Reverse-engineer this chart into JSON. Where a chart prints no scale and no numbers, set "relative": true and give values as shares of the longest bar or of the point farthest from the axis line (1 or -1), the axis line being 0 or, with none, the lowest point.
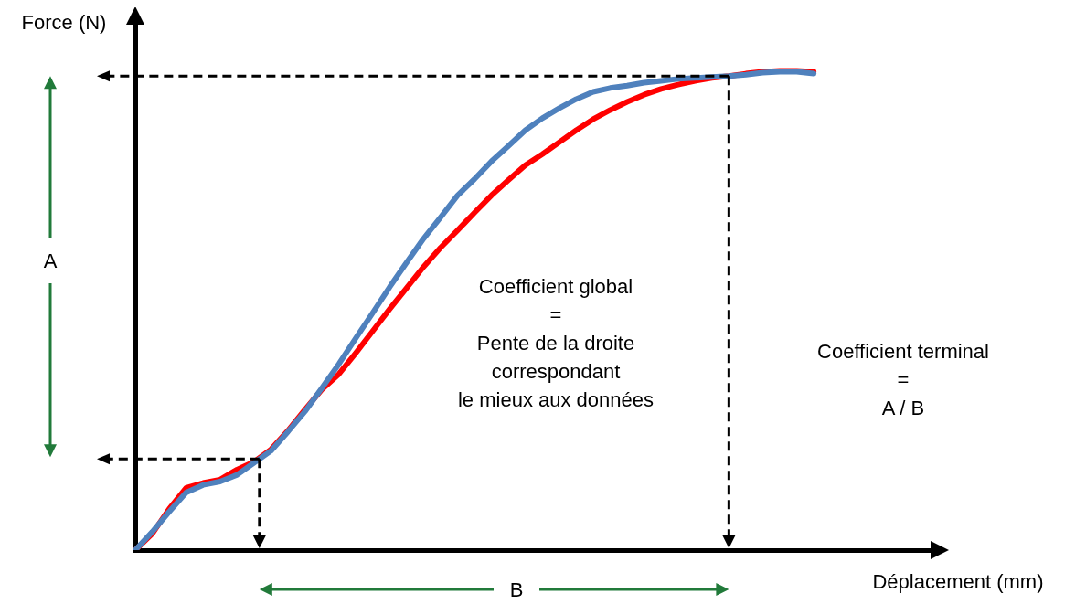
{
  "chart_data": {
    "type": "line",
    "relative": true,
    "xlabel": "Déplacement (mm)",
    "ylabel": "Force (N)",
    "categories": [
      null,
      null,
      null,
      null,
      null,
      null,
      null,
      null,
      null,
      null,
      null,
      null,
      null,
      null,
      null,
      null,
      null,
      null,
      null,
      null,
      null,
      null,
      null,
      null,
      null,
      null,
      null,
      null,
      null,
      null,
      null,
      null,
      null,
      null,
      null,
      null,
      null,
      null,
      null,
      null,
      null,
      null,
      null,
      null,
      null,
      null,
      null,
      null
    ],
    "series": [
      {
        "color": "#4f81bd",
        "values": [
          0,
          0.038,
          0.08,
          0.12,
          0.136,
          0.143,
          0.157,
          0.182,
          0.207,
          0.247,
          0.289,
          0.338,
          0.388,
          0.442,
          0.495,
          0.549,
          0.6,
          0.65,
          0.694,
          0.74,
          0.774,
          0.811,
          0.843,
          0.876,
          0.901,
          0.922,
          0.941,
          0.956,
          0.964,
          0.969,
          0.975,
          0.979,
          0.983,
          0.985,
          0.987,
          0.989,
          0.992,
          0.996,
          0.998,
          0.998,
          0.994,
          null,
          null,
          null,
          null,
          null,
          null,
          null
        ]
      },
      {
        "color": "#ff0000",
        "values": [
          0,
          0.034,
          0.086,
          0.13,
          0.14,
          0.147,
          0.168,
          0.184,
          0.21,
          0.249,
          0.293,
          0.335,
          0.367,
          0.411,
          0.457,
          0.503,
          0.547,
          0.591,
          0.631,
          0.667,
          0.704,
          0.74,
          0.772,
          0.803,
          0.826,
          0.851,
          0.876,
          0.899,
          0.918,
          0.935,
          0.95,
          0.962,
          0.971,
          0.979,
          0.985,
          0.989,
          0.994,
          0.998,
          1,
          1,
          0.998,
          null,
          null,
          null,
          null,
          null,
          null,
          null
        ]
      }
    ],
    "ref_lines": [
      {
        "axis": "y",
        "value": 0.19,
        "color": "#000000",
        "line_style": "dashed"
      },
      {
        "axis": "y",
        "value": 0.989,
        "color": "#000000",
        "line_style": "dashed"
      }
    ],
    "annotations": [
      "Coefficient global\n=\nPente de la droite\ncorrespondant\nle mieux aux données",
      "Coefficient terminal\n=\nA / B",
      "A",
      "B"
    ]
  }
}
